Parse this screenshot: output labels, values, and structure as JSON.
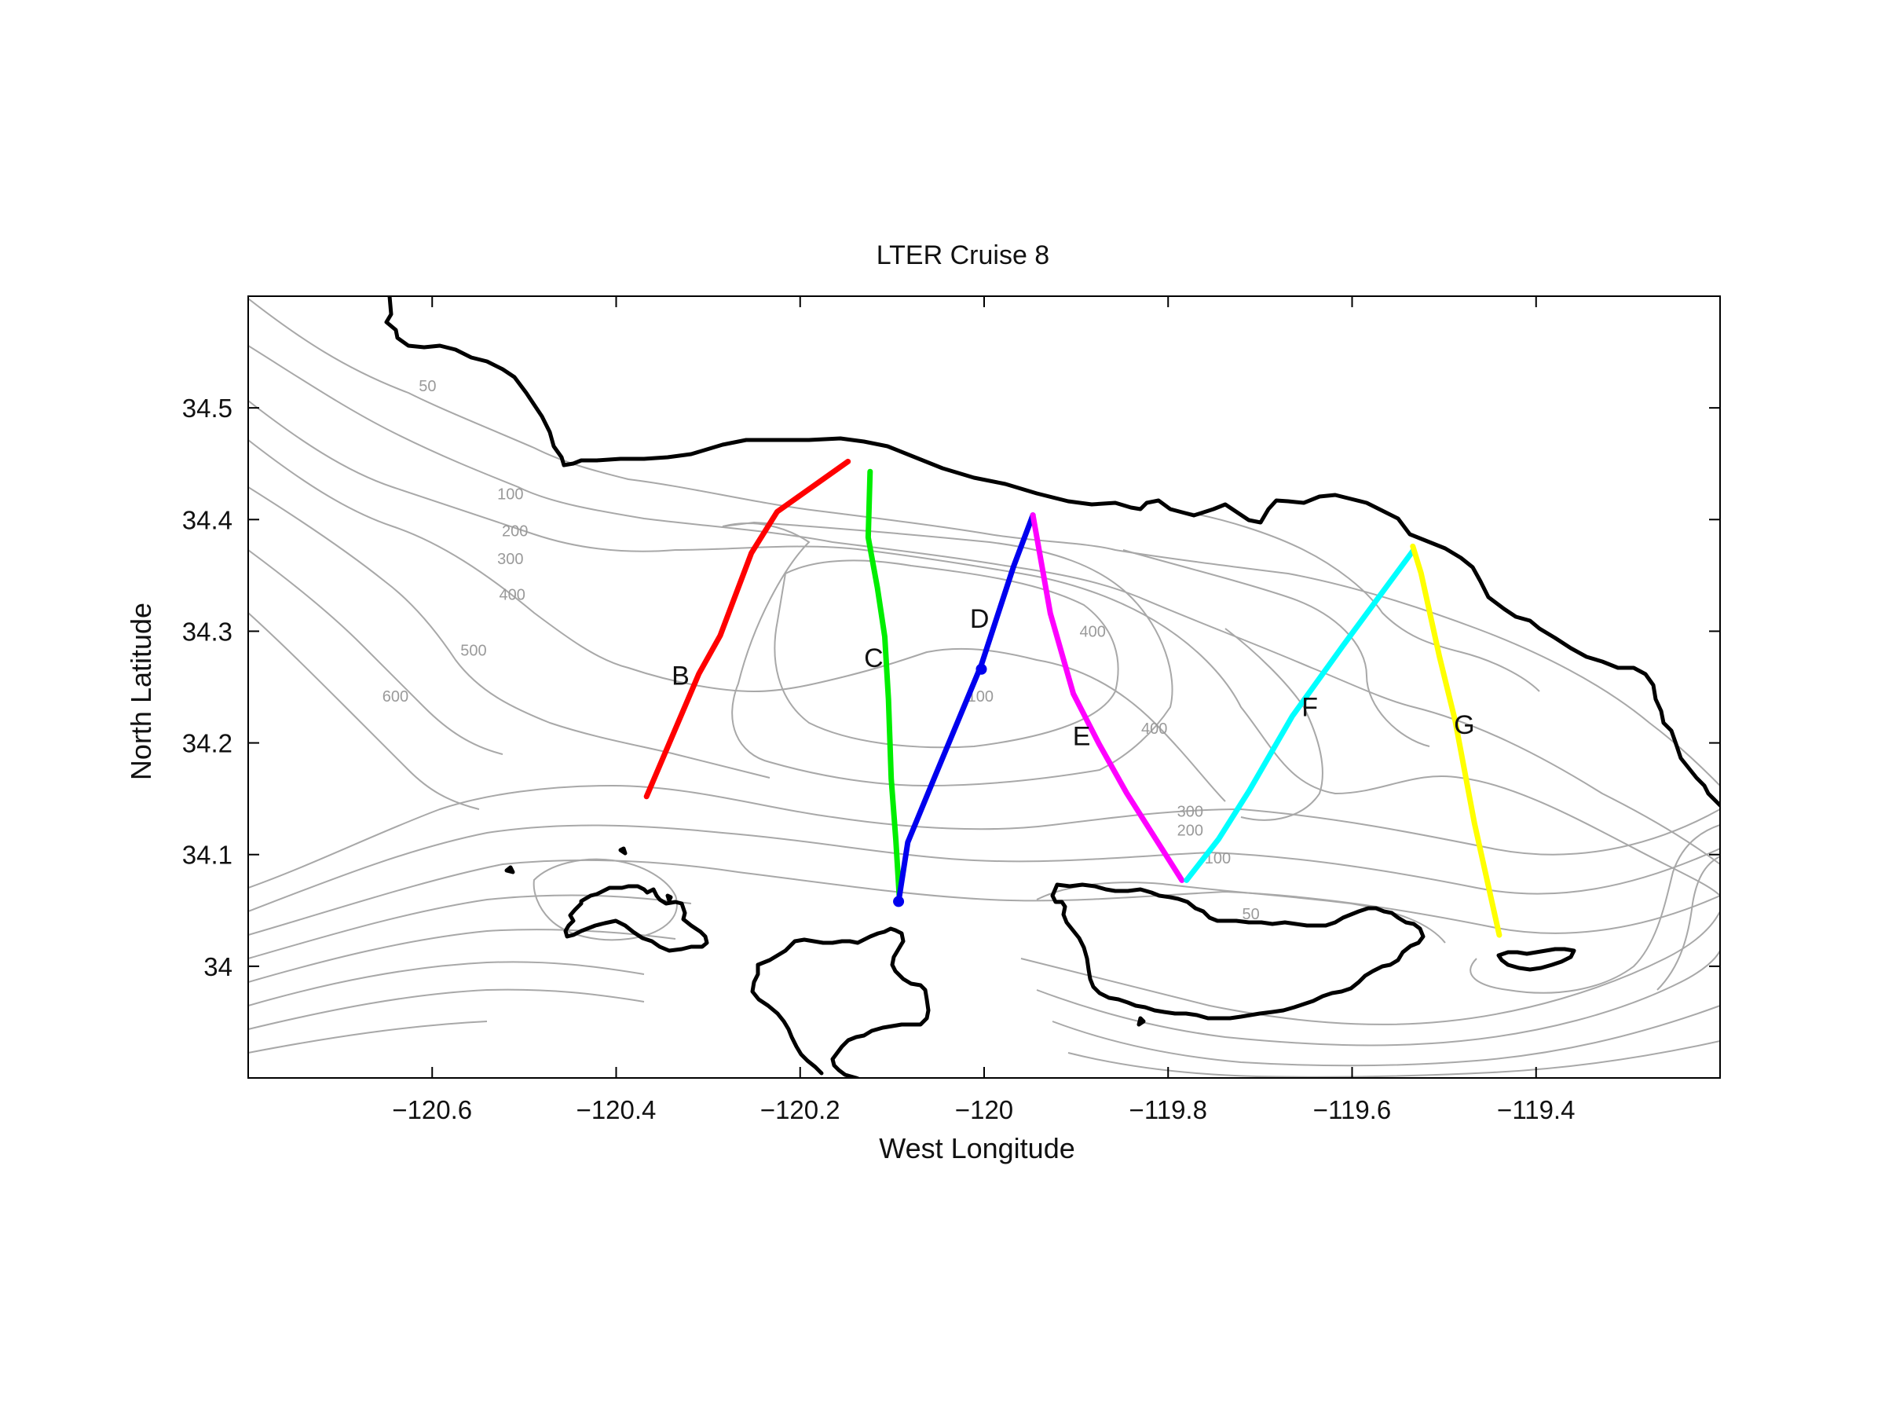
{
  "chart_data": {
    "type": "map",
    "title": "LTER Cruise 8",
    "xlabel": "West Longitude",
    "ylabel": "North Latitude",
    "xlim": [
      -120.8,
      -119.2
    ],
    "ylim": [
      33.9,
      34.6
    ],
    "x_ticks": [
      -120.6,
      -120.4,
      -120.2,
      -120,
      -119.8,
      -119.6,
      -119.4
    ],
    "x_tick_labels": [
      "−120.6",
      "−120.4",
      "−120.2",
      "−120",
      "−119.8",
      "−119.6",
      "−119.4"
    ],
    "y_ticks": [
      34,
      34.1,
      34.2,
      34.3,
      34.4,
      34.5
    ],
    "y_tick_labels": [
      "34",
      "34.1",
      "34.2",
      "34.3",
      "34.4",
      "34.5"
    ],
    "grid": false,
    "contour_color": "#a8a8a8",
    "coast_color": "#000000",
    "contour_labels": [
      {
        "text": "50",
        "lon": -120.605,
        "lat": 34.515
      },
      {
        "text": "100",
        "lon": -120.515,
        "lat": 34.418
      },
      {
        "text": "200",
        "lon": -120.51,
        "lat": 34.385
      },
      {
        "text": "300",
        "lon": -120.515,
        "lat": 34.36
      },
      {
        "text": "400",
        "lon": -120.513,
        "lat": 34.328
      },
      {
        "text": "500",
        "lon": -120.555,
        "lat": 34.278
      },
      {
        "text": "600",
        "lon": -120.64,
        "lat": 34.237
      },
      {
        "text": "100",
        "lon": -120.004,
        "lat": 34.237
      },
      {
        "text": "400",
        "lon": -119.882,
        "lat": 34.295
      },
      {
        "text": "400",
        "lon": -119.815,
        "lat": 34.208
      },
      {
        "text": "300",
        "lon": -119.776,
        "lat": 34.134
      },
      {
        "text": "200",
        "lon": -119.776,
        "lat": 34.117
      },
      {
        "text": "100",
        "lon": -119.746,
        "lat": 34.092
      },
      {
        "text": "50",
        "lon": -119.71,
        "lat": 34.042
      }
    ],
    "series": [
      {
        "name": "B",
        "color": "#ff0000",
        "lon": [
          -120.367,
          -120.31,
          -120.287,
          -120.253,
          -120.225,
          -120.148
        ],
        "lat": [
          34.152,
          34.262,
          34.296,
          34.37,
          34.407,
          34.452
        ],
        "label_lon": -120.33,
        "label_lat": 34.252
      },
      {
        "name": "C",
        "color": "#00ee00",
        "lon": [
          -120.124,
          -120.126,
          -120.116,
          -120.108,
          -120.104,
          -120.101,
          -120.096,
          -120.092
        ],
        "lat": [
          34.443,
          34.384,
          34.339,
          34.295,
          34.239,
          34.168,
          34.113,
          34.06
        ],
        "label_lon": -120.12,
        "label_lat": 34.268
      },
      {
        "name": "D",
        "color": "#0000ee",
        "lon": [
          -120.093,
          -120.083,
          -120.054,
          -120.003,
          -119.968,
          -119.947
        ],
        "lat": [
          34.058,
          34.111,
          34.169,
          34.27,
          34.358,
          34.404
        ],
        "label_lon": -120.005,
        "label_lat": 34.303,
        "markers": [
          {
            "lon": -120.093,
            "lat": 34.058
          },
          {
            "lon": -120.003,
            "lat": 34.266
          }
        ]
      },
      {
        "name": "E",
        "color": "#ff00ff",
        "lon": [
          -119.947,
          -119.928,
          -119.903,
          -119.875,
          -119.845,
          -119.785
        ],
        "lat": [
          34.404,
          34.316,
          34.244,
          34.199,
          34.155,
          34.077
        ],
        "label_lon": -119.894,
        "label_lat": 34.198
      },
      {
        "name": "F",
        "color": "#00ffff",
        "lon": [
          -119.78,
          -119.745,
          -119.712,
          -119.665,
          -119.61,
          -119.533
        ],
        "lat": [
          34.077,
          34.114,
          34.157,
          34.224,
          34.287,
          34.373
        ],
        "label_lon": -119.646,
        "label_lat": 34.224
      },
      {
        "name": "G",
        "color": "#ffff00",
        "lon": [
          -119.534,
          -119.525,
          -119.505,
          -119.488,
          -119.467,
          -119.44
        ],
        "lat": [
          34.376,
          34.352,
          34.277,
          34.22,
          34.128,
          34.028
        ],
        "label_lon": -119.478,
        "label_lat": 34.208
      }
    ]
  }
}
